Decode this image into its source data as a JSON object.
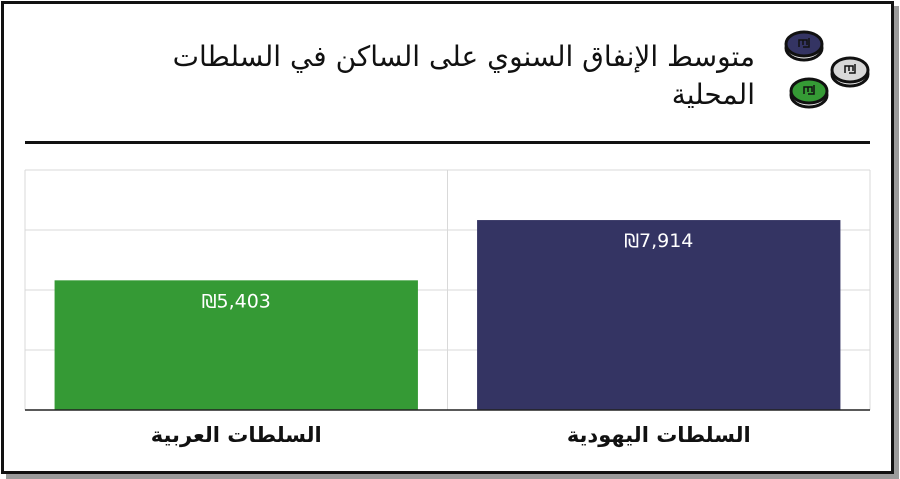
{
  "title": "متوسط الإنفاق السنوي على الساكن في السلطات المحلية",
  "icon": "shekel-coins-icon",
  "chart_data": {
    "type": "bar",
    "title": "متوسط الإنفاق السنوي على الساكن في السلطات المحلية",
    "categories": [
      "السلطات العربية",
      "السلطات اليهودية"
    ],
    "values": [
      5403,
      7914
    ],
    "data_labels": [
      "₪5,403",
      "₪7,914"
    ],
    "colors": [
      "#359a35",
      "#343463"
    ],
    "ylim": [
      0,
      10000
    ],
    "ytick_step": 2500,
    "grid": true,
    "xlabel": "",
    "ylabel": ""
  }
}
